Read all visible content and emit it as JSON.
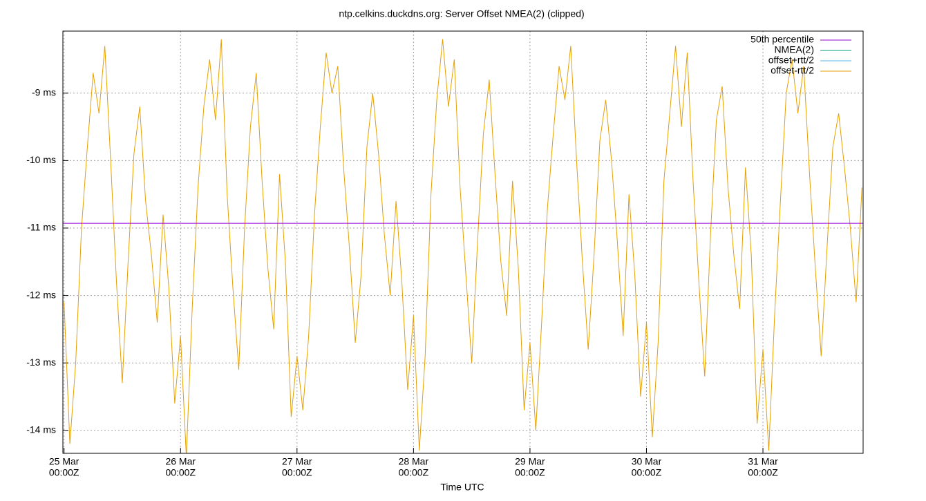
{
  "chart_data": {
    "type": "line",
    "title": "ntp.celkins.duckdns.org: Server Offset NMEA(2) (clipped)",
    "x_label": "Time UTC",
    "grid": true,
    "legend": "top-right",
    "xlim": [
      -0.01,
      6.86
    ],
    "ylim": [
      -14.34,
      -8.08
    ],
    "xticks": [
      {
        "value": 0,
        "label": [
          "25 Mar",
          "00:00Z"
        ]
      },
      {
        "value": 1,
        "label": [
          "26 Mar",
          "00:00Z"
        ]
      },
      {
        "value": 2,
        "label": [
          "27 Mar",
          "00:00Z"
        ]
      },
      {
        "value": 3,
        "label": [
          "28 Mar",
          "00:00Z"
        ]
      },
      {
        "value": 4,
        "label": [
          "29 Mar",
          "00:00Z"
        ]
      },
      {
        "value": 5,
        "label": [
          "30 Mar",
          "00:00Z"
        ]
      },
      {
        "value": 6,
        "label": [
          "31 Mar",
          "00:00Z"
        ]
      }
    ],
    "yticks": [
      {
        "value": -14,
        "label": "-14 ms"
      },
      {
        "value": -13,
        "label": "-13 ms"
      },
      {
        "value": -12,
        "label": "-12 ms"
      },
      {
        "value": -11,
        "label": "-11 ms"
      },
      {
        "value": -10,
        "label": "-10 ms"
      },
      {
        "value": -9,
        "label": "-9 ms"
      }
    ],
    "series": [
      {
        "name": "50th percentile",
        "color": "#9400d3",
        "x": [
          -0.01,
          6.86
        ],
        "values": [
          -10.93,
          -10.93
        ]
      },
      {
        "name": "NMEA(2)",
        "color": "#009e73",
        "x": [],
        "values": []
      },
      {
        "name": "offset+rtt/2",
        "color": "#56b4e9",
        "x": [],
        "values": []
      },
      {
        "name": "offset-rtt/2",
        "color": "#e69f00",
        "x": [
          0,
          0.05,
          0.1,
          0.15,
          0.2,
          0.25,
          0.3,
          0.35,
          0.4,
          0.45,
          0.5,
          0.55,
          0.6,
          0.65,
          0.7,
          0.75,
          0.8,
          0.85,
          0.9,
          0.95,
          1,
          1.05,
          1.1,
          1.15,
          1.2,
          1.25,
          1.3,
          1.35,
          1.4,
          1.45,
          1.5,
          1.55,
          1.6,
          1.65,
          1.7,
          1.75,
          1.8,
          1.85,
          1.9,
          1.95,
          2,
          2.05,
          2.1,
          2.15,
          2.2,
          2.25,
          2.3,
          2.35,
          2.4,
          2.45,
          2.5,
          2.55,
          2.6,
          2.65,
          2.7,
          2.75,
          2.8,
          2.85,
          2.9,
          2.95,
          3,
          3.05,
          3.1,
          3.15,
          3.2,
          3.25,
          3.3,
          3.35,
          3.4,
          3.45,
          3.5,
          3.55,
          3.6,
          3.65,
          3.7,
          3.75,
          3.8,
          3.85,
          3.9,
          3.95,
          4,
          4.05,
          4.1,
          4.15,
          4.2,
          4.25,
          4.3,
          4.35,
          4.4,
          4.45,
          4.5,
          4.55,
          4.6,
          4.65,
          4.7,
          4.75,
          4.8,
          4.85,
          4.9,
          4.95,
          5,
          5.05,
          5.1,
          5.15,
          5.2,
          5.25,
          5.3,
          5.35,
          5.4,
          5.45,
          5.5,
          5.55,
          5.6,
          5.65,
          5.7,
          5.75,
          5.8,
          5.85,
          5.9,
          5.95,
          6,
          6.05,
          6.1,
          6.15,
          6.2,
          6.25,
          6.3,
          6.35,
          6.4,
          6.45,
          6.5,
          6.55,
          6.6,
          6.65,
          6.7,
          6.75,
          6.8,
          6.85
        ],
        "values": [
          -12.1,
          -14.2,
          -13.0,
          -11.0,
          -9.8,
          -8.7,
          -9.3,
          -8.3,
          -10.0,
          -11.8,
          -13.3,
          -11.5,
          -9.9,
          -9.2,
          -10.6,
          -11.4,
          -12.4,
          -10.8,
          -11.9,
          -13.6,
          -12.6,
          -14.4,
          -12.2,
          -10.4,
          -9.2,
          -8.5,
          -9.4,
          -8.2,
          -10.5,
          -11.9,
          -13.1,
          -11.0,
          -9.5,
          -8.7,
          -10.3,
          -11.6,
          -12.5,
          -10.2,
          -11.5,
          -13.8,
          -12.9,
          -13.7,
          -12.6,
          -10.8,
          -9.5,
          -8.4,
          -9.0,
          -8.6,
          -10.1,
          -11.3,
          -12.7,
          -11.7,
          -9.8,
          -9.0,
          -9.9,
          -11.1,
          -12.0,
          -10.6,
          -11.8,
          -13.4,
          -12.3,
          -14.3,
          -12.9,
          -10.5,
          -9.1,
          -8.2,
          -9.2,
          -8.5,
          -10.4,
          -11.7,
          -13.0,
          -11.2,
          -9.6,
          -8.8,
          -10.2,
          -11.5,
          -12.3,
          -10.3,
          -11.6,
          -13.7,
          -12.7,
          -14.0,
          -12.4,
          -10.7,
          -9.6,
          -8.6,
          -9.1,
          -8.3,
          -10.0,
          -11.5,
          -12.8,
          -11.4,
          -9.7,
          -9.1,
          -10.0,
          -11.2,
          -12.6,
          -10.5,
          -11.7,
          -13.5,
          -12.4,
          -14.1,
          -12.7,
          -10.3,
          -9.3,
          -8.3,
          -9.5,
          -8.4,
          -10.3,
          -11.8,
          -13.2,
          -11.1,
          -9.4,
          -8.9,
          -10.4,
          -11.4,
          -12.2,
          -10.1,
          -11.4,
          -13.9,
          -12.8,
          -14.3,
          -12.3,
          -10.6,
          -9.0,
          -8.5,
          -9.3,
          -8.6,
          -10.2,
          -11.6,
          -12.9,
          -11.3,
          -9.8,
          -9.3,
          -10.1,
          -11.0,
          -12.1,
          -10.4
        ]
      }
    ]
  }
}
